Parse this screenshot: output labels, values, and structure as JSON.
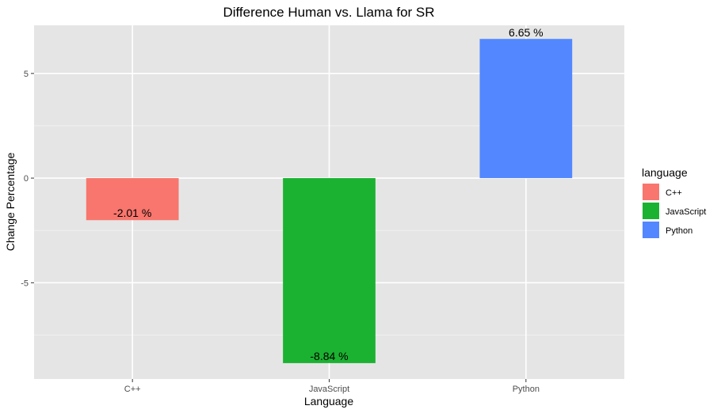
{
  "chart_data": {
    "type": "bar",
    "title": "Difference Human vs. Llama for SR",
    "xlabel": "Language",
    "ylabel": "Change Percentage",
    "categories": [
      "C++",
      "JavaScript",
      "Python"
    ],
    "values": [
      -2.01,
      -8.84,
      6.65
    ],
    "data_labels": [
      "-2.01 %",
      "-8.84 %",
      "6.65 %"
    ],
    "colors": [
      "#F8766D",
      "#1BB231",
      "#5287FF"
    ],
    "ylim": [
      -9.6,
      7.3
    ],
    "yticks": [
      -5,
      0,
      5
    ],
    "ytick_labels": [
      "-5",
      "0",
      "5"
    ],
    "grid": true,
    "legend": {
      "title": "language",
      "position": "right",
      "entries": [
        "C++",
        "JavaScript",
        "Python"
      ]
    }
  }
}
